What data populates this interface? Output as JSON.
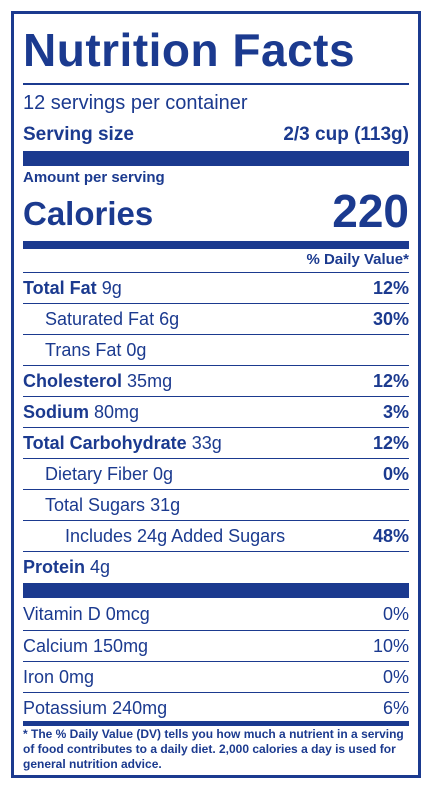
{
  "title": "Nutrition Facts",
  "servings_per_container": "12 servings per container",
  "serving_size_label": "Serving size",
  "serving_size_value": "2/3 cup (113g)",
  "amount_per_serving": "Amount per serving",
  "calories_label": "Calories",
  "calories_value": "220",
  "daily_value_header": "% Daily Value*",
  "nutrients": [
    {
      "name": "Total Fat",
      "amount": "9g",
      "dv": "12%"
    },
    {
      "name": "Saturated Fat",
      "amount": "6g",
      "dv": "30%"
    },
    {
      "name": "Trans Fat",
      "amount": "0g",
      "dv": ""
    },
    {
      "name": "Cholesterol",
      "amount": "35mg",
      "dv": "12%"
    },
    {
      "name": "Sodium",
      "amount": "80mg",
      "dv": "3%"
    },
    {
      "name": "Total Carbohydrate",
      "amount": "33g",
      "dv": "12%"
    },
    {
      "name": "Dietary Fiber",
      "amount": "0g",
      "dv": "0%"
    },
    {
      "name": "Total Sugars",
      "amount": "31g",
      "dv": ""
    },
    {
      "name": "Includes 24g Added Sugars",
      "amount": "",
      "dv": "48%"
    },
    {
      "name": "Protein",
      "amount": "4g",
      "dv": ""
    }
  ],
  "vitamins": [
    {
      "name": "Vitamin D",
      "amount": "0mcg",
      "dv": "0%"
    },
    {
      "name": "Calcium",
      "amount": "150mg",
      "dv": "10%"
    },
    {
      "name": "Iron",
      "amount": "0mg",
      "dv": "0%"
    },
    {
      "name": "Potassium",
      "amount": "240mg",
      "dv": "6%"
    }
  ],
  "footnote": "* The % Daily Value (DV) tells you how much a nutrient in a serving of food contributes to a daily diet. 2,000 calories a day is used for general nutrition advice.",
  "colors": {
    "ink": "#1b3a8f",
    "background": "#ffffff"
  }
}
